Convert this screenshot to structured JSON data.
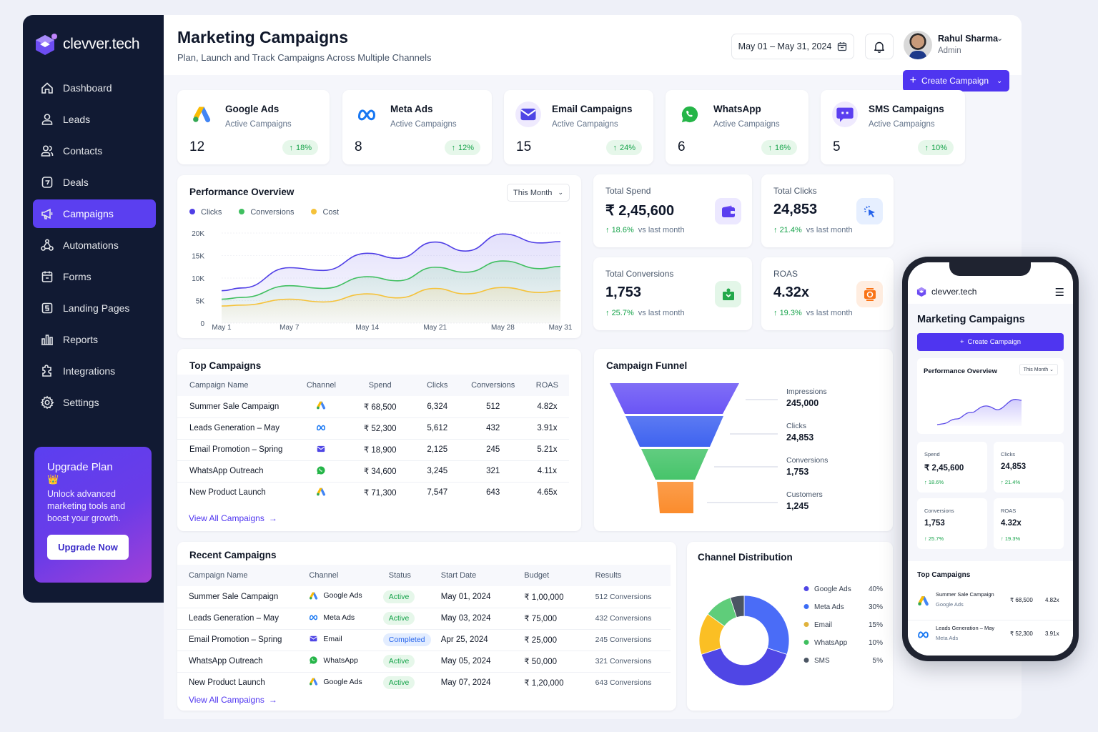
{
  "brand": {
    "name": "clevver.tech",
    "accent": "#5b3ff0"
  },
  "sidebar": {
    "items": [
      {
        "label": "Dashboard",
        "icon": "home-icon"
      },
      {
        "label": "Leads",
        "icon": "user-icon"
      },
      {
        "label": "Contacts",
        "icon": "users-icon"
      },
      {
        "label": "Deals",
        "icon": "deal-icon"
      },
      {
        "label": "Campaigns",
        "icon": "megaphone-icon",
        "active": true
      },
      {
        "label": "Automations",
        "icon": "automation-icon"
      },
      {
        "label": "Forms",
        "icon": "form-icon"
      },
      {
        "label": "Landing Pages",
        "icon": "landing-page-icon"
      },
      {
        "label": "Reports",
        "icon": "reports-icon"
      },
      {
        "label": "Integrations",
        "icon": "puzzle-icon"
      },
      {
        "label": "Settings",
        "icon": "gear-icon"
      }
    ],
    "upgrade": {
      "title": "Upgrade Plan",
      "emoji": "👑",
      "text": "Unlock advanced marketing tools and boost your growth.",
      "button": "Upgrade Now"
    }
  },
  "header": {
    "title": "Marketing Campaigns",
    "subtitle": "Plan, Launch and Track Campaigns Across Multiple Channels",
    "date_range": "May 01 – May 31, 2024",
    "user_name": "Rahul Sharma",
    "user_role": "Admin",
    "create_button": "Create Campaign"
  },
  "channels": [
    {
      "name": "Google Ads",
      "sub": "Active Campaigns",
      "count": "12",
      "change": "18%"
    },
    {
      "name": "Meta Ads",
      "sub": "Active Campaigns",
      "count": "8",
      "change": "12%"
    },
    {
      "name": "Email Campaigns",
      "sub": "Active Campaigns",
      "count": "15",
      "change": "24%"
    },
    {
      "name": "WhatsApp",
      "sub": "Active Campaigns",
      "count": "6",
      "change": "16%"
    },
    {
      "name": "SMS Campaigns",
      "sub": "Active Campaigns",
      "count": "5",
      "change": "10%"
    }
  ],
  "performance": {
    "title": "Performance Overview",
    "period": "This Month"
  },
  "kpis": [
    {
      "label": "Total Spend",
      "value": "₹ 2,45,600",
      "delta": "18.6%",
      "vs": "vs last month"
    },
    {
      "label": "Total Clicks",
      "value": "24,853",
      "delta": "21.4%",
      "vs": "vs last month"
    },
    {
      "label": "Total Conversions",
      "value": "1,753",
      "delta": "25.7%",
      "vs": "vs last month"
    },
    {
      "label": "ROAS",
      "value": "4.32x",
      "delta": "19.3%",
      "vs": "vs last month"
    }
  ],
  "top_campaigns": {
    "title": "Top Campaigns",
    "columns": [
      "Campaign Name",
      "Channel",
      "Spend",
      "Clicks",
      "Conversions",
      "ROAS"
    ],
    "rows": [
      {
        "name": "Summer Sale Campaign",
        "channel": "google",
        "spend": "₹ 68,500",
        "clicks": "6,324",
        "conversions": "512",
        "roas": "4.82x"
      },
      {
        "name": "Leads Generation – May",
        "channel": "meta",
        "spend": "₹ 52,300",
        "clicks": "5,612",
        "conversions": "432",
        "roas": "3.91x"
      },
      {
        "name": "Email Promotion – Spring",
        "channel": "email",
        "spend": "₹ 18,900",
        "clicks": "2,125",
        "conversions": "245",
        "roas": "5.21x"
      },
      {
        "name": "WhatsApp Outreach",
        "channel": "whatsapp",
        "spend": "₹ 34,600",
        "clicks": "3,245",
        "conversions": "321",
        "roas": "4.11x"
      },
      {
        "name": "New Product Launch",
        "channel": "google",
        "spend": "₹ 71,300",
        "clicks": "7,547",
        "conversions": "643",
        "roas": "4.65x"
      }
    ],
    "view_all": "View All Campaigns"
  },
  "funnel": {
    "title": "Campaign Funnel",
    "stages": [
      {
        "label": "Impressions",
        "value": "245,000",
        "color": "#6a55f5"
      },
      {
        "label": "Clicks",
        "value": "24,853",
        "color": "#3f63f0"
      },
      {
        "label": "Conversions",
        "value": "1,753",
        "color": "#46c46a"
      },
      {
        "label": "Customers",
        "value": "1,245",
        "color": "#fb8c2c"
      }
    ]
  },
  "recent_campaigns": {
    "title": "Recent Campaigns",
    "columns": [
      "Campaign Name",
      "Channel",
      "Status",
      "Start Date",
      "Budget",
      "Results"
    ],
    "rows": [
      {
        "name": "Summer Sale Campaign",
        "channel": "google",
        "channel_label": "Google Ads",
        "status": "Active",
        "date": "May 01, 2024",
        "budget": "₹ 1,00,000",
        "results": "512 Conversions"
      },
      {
        "name": "Leads Generation – May",
        "channel": "meta",
        "channel_label": "Meta Ads",
        "status": "Active",
        "date": "May 03, 2024",
        "budget": "₹ 75,000",
        "results": "432 Conversions"
      },
      {
        "name": "Email Promotion – Spring",
        "channel": "email",
        "channel_label": "Email",
        "status": "Completed",
        "date": "Apr 25, 2024",
        "budget": "₹ 25,000",
        "results": "245 Conversions"
      },
      {
        "name": "WhatsApp Outreach",
        "channel": "whatsapp",
        "channel_label": "WhatsApp",
        "status": "Active",
        "date": "May 05, 2024",
        "budget": "₹ 50,000",
        "results": "321 Conversions"
      },
      {
        "name": "New Product Launch",
        "channel": "google",
        "channel_label": "Google Ads",
        "status": "Active",
        "date": "May 07, 2024",
        "budget": "₹ 1,20,000",
        "results": "643 Conversions"
      }
    ],
    "view_all": "View All Campaigns"
  },
  "mobile": {
    "brand": "clevver.tech",
    "title": "Marketing Campaigns",
    "create_button": "Create Campaign",
    "perf_title": "Performance Overview",
    "perf_period": "This Month",
    "kpis": [
      {
        "label": "Spend",
        "value": "₹ 2,45,600",
        "delta": "18.6%"
      },
      {
        "label": "Clicks",
        "value": "24,853",
        "delta": "21.4%"
      },
      {
        "label": "Conversions",
        "value": "1,753",
        "delta": "25.7%"
      },
      {
        "label": "ROAS",
        "value": "4.32x",
        "delta": "19.3%"
      }
    ],
    "top_title": "Top Campaigns",
    "top_rows": [
      {
        "name": "Summer Sale Campaign",
        "channel": "Google Ads",
        "spend": "₹ 68,500",
        "roas": "4.82x"
      },
      {
        "name": "Leads Generation – May",
        "channel": "Meta Ads",
        "spend": "₹ 52,300",
        "roas": "3.91x"
      }
    ]
  },
  "chart_data": [
    {
      "type": "area",
      "title": "Performance Overview",
      "x": [
        "May 1",
        "May 3",
        "May 7",
        "May 10",
        "May 14",
        "May 17",
        "May 21",
        "May 24",
        "May 28",
        "May 30",
        "May 31"
      ],
      "xticks": [
        "May 1",
        "May 7",
        "May 14",
        "May 21",
        "May 28",
        "May 31"
      ],
      "yticks": [
        "0",
        "5K",
        "10K",
        "15K",
        "20K"
      ],
      "ylim": [
        0,
        20000
      ],
      "grid": true,
      "legend": "top-left",
      "series": [
        {
          "name": "Clicks",
          "color": "#4f3ee6",
          "values": [
            7200,
            7800,
            12300,
            11700,
            15500,
            14400,
            18000,
            16000,
            19800,
            17800,
            18100
          ]
        },
        {
          "name": "Conversions",
          "color": "#3fbf5f",
          "values": [
            5300,
            5700,
            8300,
            7700,
            10300,
            9400,
            12400,
            11300,
            13800,
            12100,
            12600
          ]
        },
        {
          "name": "Cost",
          "color": "#f5c23a",
          "values": [
            3800,
            4000,
            5300,
            4700,
            6500,
            5600,
            7700,
            6500,
            7900,
            6800,
            7200
          ]
        }
      ]
    },
    {
      "type": "pie",
      "title": "Channel Distribution",
      "legend": "right",
      "categories": [
        "Google Ads",
        "Meta Ads",
        "Email",
        "WhatsApp",
        "SMS"
      ],
      "values": [
        40,
        30,
        15,
        10,
        5
      ],
      "labels": [
        "40%",
        "30%",
        "15%",
        "10%",
        "5%"
      ],
      "colors": [
        "#4f46e5",
        "#4a6cf7",
        "#fbbf24",
        "#5fcd7a",
        "#4b5563"
      ],
      "legend_colors": [
        "#4f46e5",
        "#3b6cf5",
        "#e0b23c",
        "#3fbf5f",
        "#4b5563"
      ],
      "slice_order": [
        1,
        0,
        2,
        3,
        4
      ]
    }
  ]
}
